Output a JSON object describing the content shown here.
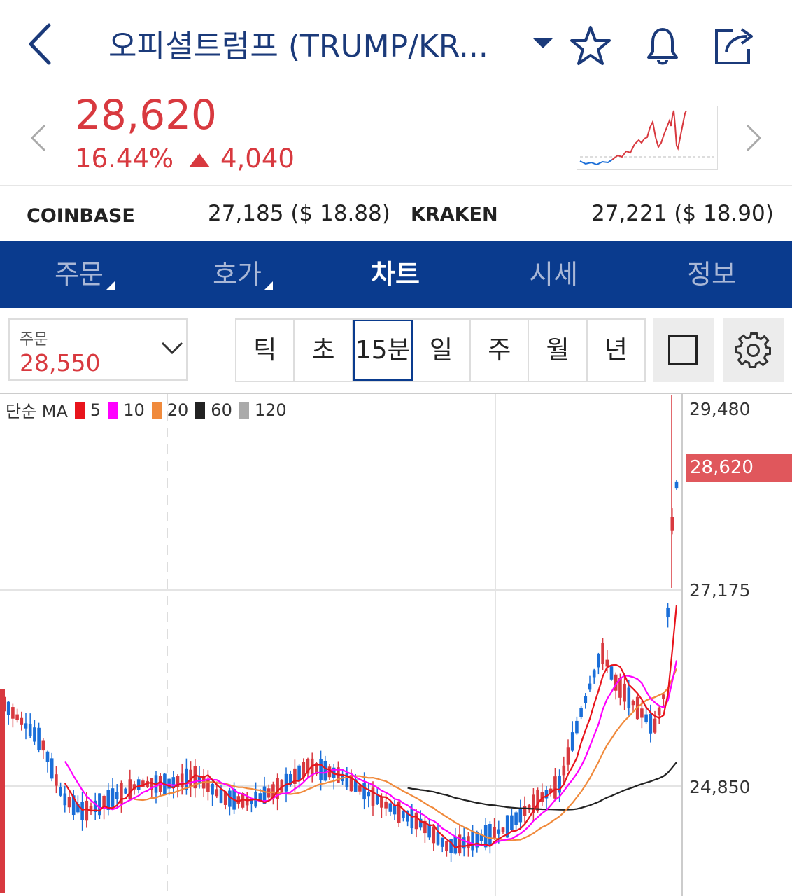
{
  "header": {
    "title": "오피셜트럼프 (TRUMP/KR...",
    "icons": [
      "chevron-left-icon",
      "caret-down-icon",
      "star-icon",
      "bell-icon",
      "share-icon"
    ]
  },
  "price": {
    "current": "28,620",
    "change_pct": "16.44%",
    "change_abs": "4,040",
    "color": "#d8393f"
  },
  "exchanges": [
    {
      "name": "COINBASE",
      "value": "27,185 ($ 18.88)"
    },
    {
      "name": "KRAKEN",
      "value": "27,221 ($ 18.90)"
    }
  ],
  "tabs": [
    "주문",
    "호가",
    "차트",
    "시세",
    "정보"
  ],
  "active_tab": "차트",
  "order": {
    "label": "주문",
    "value": "28,550"
  },
  "periods": [
    "틱",
    "초",
    "15분",
    "일",
    "주",
    "월",
    "년"
  ],
  "selected_period": "15분",
  "ma_legend": {
    "label": "단순 MA",
    "items": [
      {
        "period": "5",
        "color": "#e8141c"
      },
      {
        "period": "10",
        "color": "#ff00ff"
      },
      {
        "period": "20",
        "color": "#f08a3c"
      },
      {
        "period": "60",
        "color": "#222222"
      },
      {
        "period": "120",
        "color": "#aaaaaa"
      }
    ]
  },
  "chart_data": {
    "type": "candlestick",
    "y_ticks": [
      "29,480",
      "27,175",
      "24,850"
    ],
    "current_price_label": "28,620",
    "y_range": [
      23300,
      29720
    ],
    "ma_periods": [
      5,
      10,
      20,
      60,
      120
    ],
    "up_color": "#d8393f",
    "down_color": "#1a6ed8"
  }
}
